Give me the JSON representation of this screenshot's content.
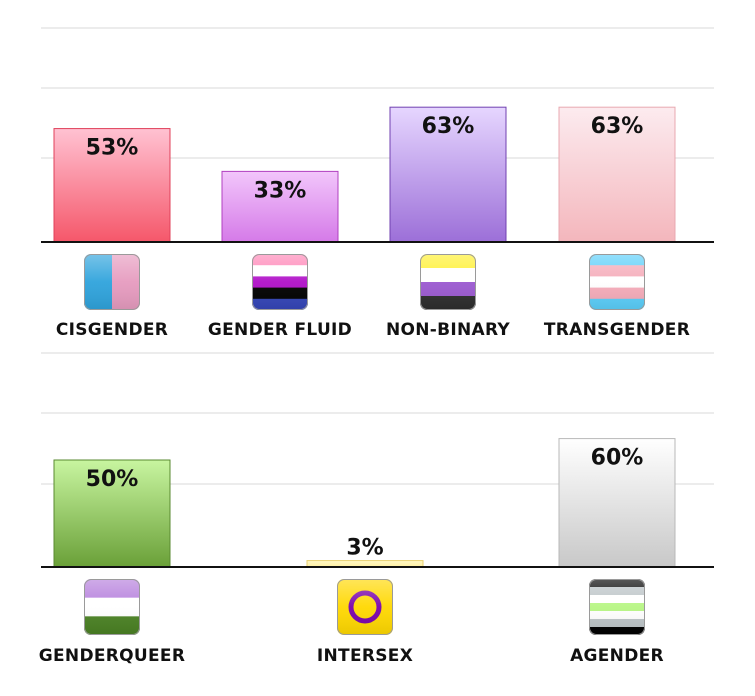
{
  "chart_data": [
    {
      "type": "bar",
      "title": "",
      "xlabel": "",
      "ylabel": "",
      "ylim": [
        0,
        100
      ],
      "grid": true,
      "unit": "%",
      "categories": [
        "CISGENDER",
        "GENDER FLUID",
        "NON-BINARY",
        "TRANSGENDER"
      ],
      "values": [
        53,
        33,
        63,
        63
      ],
      "data_labels": [
        "53%",
        "33%",
        "63%",
        "63%"
      ],
      "icons": [
        "cisgender-flag-icon",
        "gender-fluid-flag-icon",
        "non-binary-flag-icon",
        "transgender-flag-icon"
      ],
      "bar_gradients": [
        [
          "#ffc2d2",
          "#f5576a"
        ],
        [
          "#f2c6fb",
          "#d57ae8"
        ],
        [
          "#e6d6ff",
          "#9c6fd8"
        ],
        [
          "#fcebef",
          "#f4b6bc"
        ]
      ],
      "bar_strokes": [
        "#e0405a",
        "#b040c0",
        "#7040b0",
        "#e8a8b0"
      ],
      "flags": [
        {
          "kind": "v-stripes",
          "colors": [
            "#2fa3dc",
            "#e69bbf"
          ]
        },
        {
          "kind": "h-stripes",
          "colors": [
            "#ff86b7",
            "#ffffff",
            "#b010c8",
            "#000000",
            "#3445b8"
          ]
        },
        {
          "kind": "h-stripes",
          "colors": [
            "#fff030",
            "#ffffff",
            "#9b59d0",
            "#2d2d2d"
          ]
        },
        {
          "kind": "h-stripes",
          "colors": [
            "#5bcffa",
            "#f5abb9",
            "#ffffff",
            "#f5abb9",
            "#5bcffa"
          ]
        }
      ]
    },
    {
      "type": "bar",
      "title": "",
      "xlabel": "",
      "ylabel": "",
      "ylim": [
        0,
        100
      ],
      "grid": true,
      "unit": "%",
      "categories": [
        "GENDERQUEER",
        "INTERSEX",
        "AGENDER"
      ],
      "values": [
        50,
        3,
        60
      ],
      "data_labels": [
        "50%",
        "3%",
        "60%"
      ],
      "icons": [
        "genderqueer-flag-icon",
        "intersex-flag-icon",
        "agender-flag-icon"
      ],
      "bar_gradients": [
        [
          "#c8f5a0",
          "#6aa038"
        ],
        [
          "#fff8c8",
          "#fff0a0"
        ],
        [
          "#ffffff",
          "#c8c8c8"
        ]
      ],
      "bar_strokes": [
        "#5a8a30",
        "#e8d070",
        "#b8b8b8"
      ],
      "flags": [
        {
          "kind": "h-stripes",
          "colors": [
            "#b57edc",
            "#ffffff",
            "#4a8123"
          ]
        },
        {
          "kind": "ring",
          "colors": [
            "#ffd800",
            "#7902aa"
          ]
        },
        {
          "kind": "h-stripes",
          "colors": [
            "#000000",
            "#bcc4c7",
            "#ffffff",
            "#b7f684",
            "#ffffff",
            "#bcc4c7",
            "#000000"
          ]
        }
      ]
    }
  ]
}
